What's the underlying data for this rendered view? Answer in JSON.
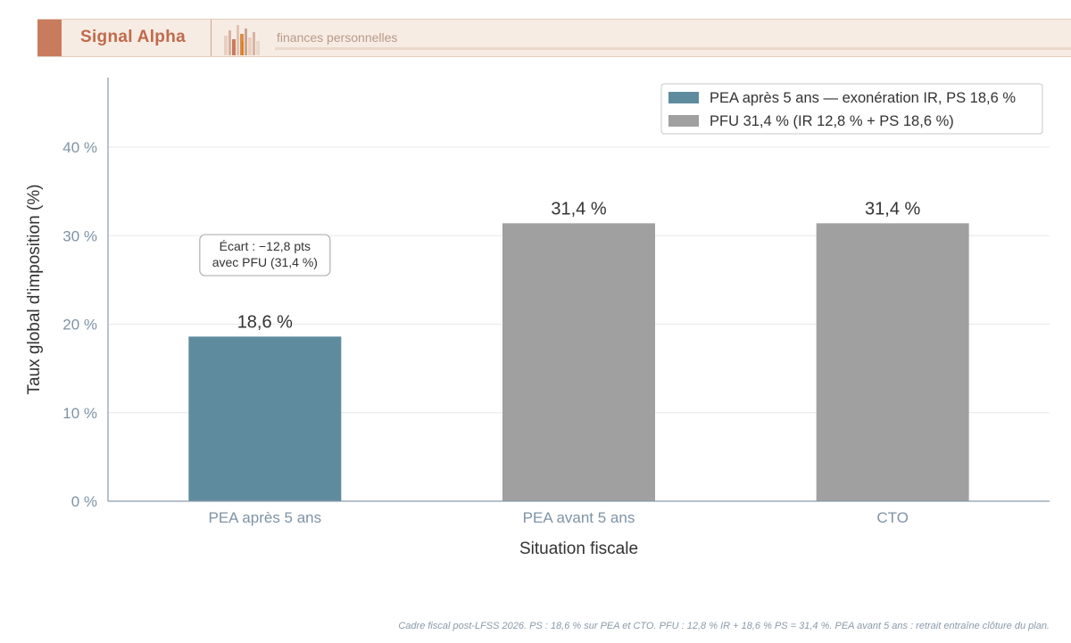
{
  "brand": {
    "name": "Signal Alpha",
    "tagline": "finances personnelles",
    "colors": {
      "accent": "#c97c5d",
      "background": "#f7ece4"
    }
  },
  "chart_data": {
    "type": "bar",
    "categories": [
      "PEA après 5 ans",
      "PEA avant 5 ans",
      "CTO"
    ],
    "values": [
      18.6,
      31.4,
      31.4
    ],
    "value_labels": [
      "18,6 %",
      "31,4 %",
      "31,4 %"
    ],
    "bar_series": [
      0,
      1,
      1
    ],
    "series": [
      {
        "name": "PEA après 5 ans — exonération IR, PS 18,6 %",
        "color": "#5e8c9e"
      },
      {
        "name": "PFU 31,4 % (IR 12,8 % + PS 18,6 %)",
        "color": "#a0a0a0"
      }
    ],
    "xlabel": "Situation fiscale",
    "ylabel": "Taux global d'imposition (%)",
    "ylim": [
      0,
      40
    ],
    "yticks": [
      0,
      10,
      20,
      30,
      40
    ],
    "ytick_labels": [
      "0 %",
      "10 %",
      "20 %",
      "30 %",
      "40 %"
    ],
    "grid": true,
    "legend_position": "top-right",
    "annotation": {
      "lines": [
        "Écart : −12,8 pts",
        "avec PFU (31,4 %)"
      ],
      "category_index": 0,
      "y": 27.5
    }
  },
  "footnote": "Cadre fiscal post-LFSS 2026. PS : 18,6 % sur PEA et CTO. PFU : 12,8 % IR + 18,6 % PS = 31,4 %. PEA avant 5 ans : retrait entraîne clôture du plan."
}
